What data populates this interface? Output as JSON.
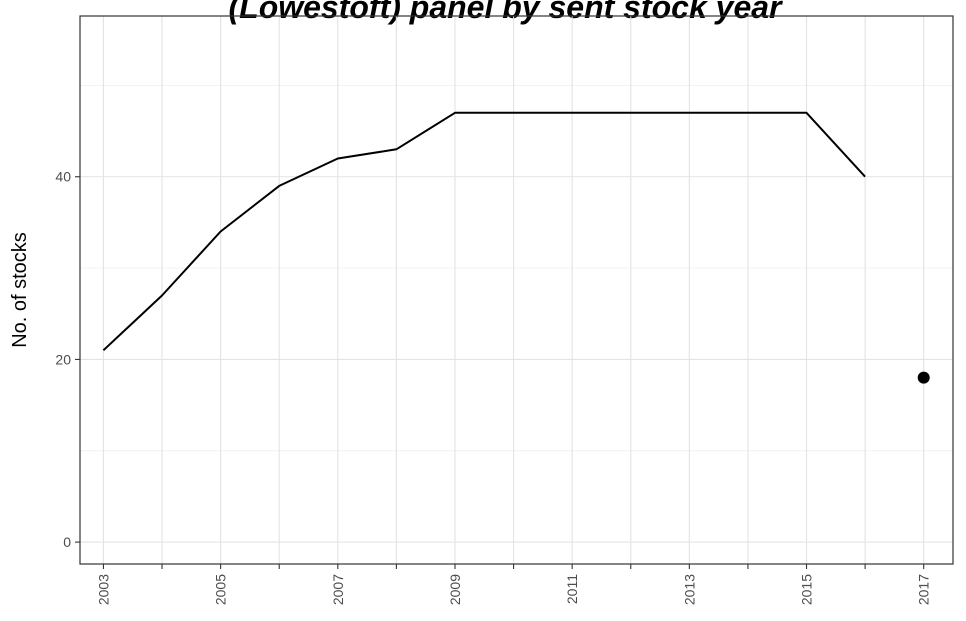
{
  "chart_data": {
    "type": "line",
    "title": "(Lowestoft) panel by sent stock year",
    "xlabel": "",
    "ylabel": "No. of stocks",
    "xlim": [
      2002.6,
      2017.5
    ],
    "ylim": [
      -2.4,
      57.6
    ],
    "x_ticks": [
      2003,
      2004,
      2005,
      2006,
      2007,
      2008,
      2009,
      2010,
      2011,
      2012,
      2013,
      2014,
      2015,
      2016,
      2017
    ],
    "x_tick_labels": [
      "2003",
      "2005",
      "2007",
      "2009",
      "2011",
      "2013",
      "2015",
      "2017"
    ],
    "y_ticks": [
      0,
      20,
      40
    ],
    "y_tick_labels": [
      "0",
      "20",
      "40"
    ],
    "grid": true,
    "legend": "none",
    "series": [
      {
        "color": "#000000",
        "x": [
          2003,
          2004,
          2005,
          2006,
          2007,
          2008,
          2009,
          2010,
          2011,
          2012,
          2013,
          2014,
          2015,
          2016
        ],
        "y": [
          21,
          27,
          34,
          39,
          42,
          43,
          47,
          47,
          47,
          47,
          47,
          47,
          47,
          40
        ]
      }
    ],
    "points": [
      {
        "color": "#000000",
        "x": 2017,
        "y": 18
      }
    ]
  }
}
